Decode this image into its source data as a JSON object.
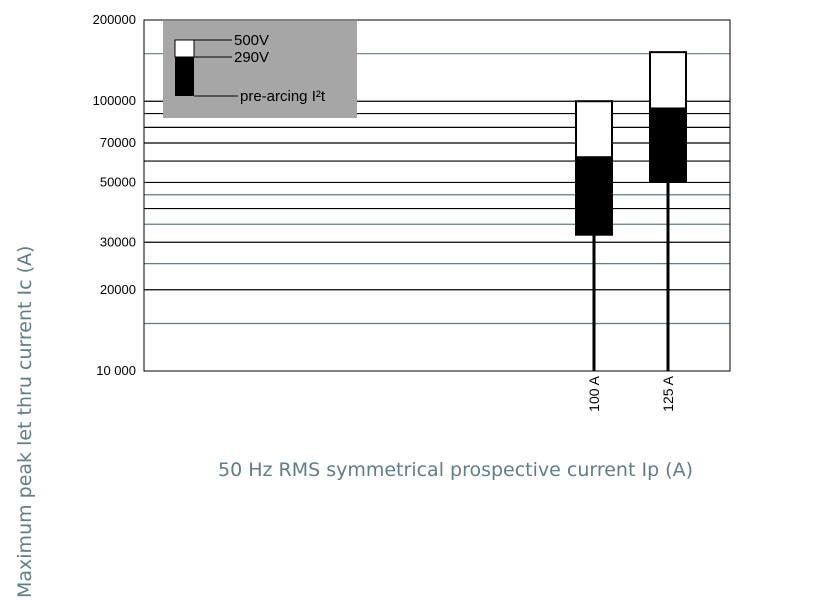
{
  "chart_data": {
    "type": "bar",
    "xlabel": "50 Hz RMS symmetrical prospective current Ip (A)",
    "ylabel": "Maximum peak let thru current Ic (A)",
    "yscale": "log",
    "ylim": [
      10000,
      200000
    ],
    "yticks": [
      {
        "value": 10000,
        "label": "10 000"
      },
      {
        "value": 20000,
        "label": "20000"
      },
      {
        "value": 30000,
        "label": "30000"
      },
      {
        "value": 50000,
        "label": "50000"
      },
      {
        "value": 70000,
        "label": "70000"
      },
      {
        "value": 100000,
        "label": "100000"
      },
      {
        "value": 200000,
        "label": "200000"
      }
    ],
    "gridlines": [
      {
        "value": 15000,
        "color": "#5f7d8a"
      },
      {
        "value": 20000,
        "color": "#000000"
      },
      {
        "value": 25000,
        "color": "#5f7d8a"
      },
      {
        "value": 30000,
        "color": "#000000"
      },
      {
        "value": 35000,
        "color": "#5f7d8a"
      },
      {
        "value": 40000,
        "color": "#000000"
      },
      {
        "value": 45000,
        "color": "#5f7d8a"
      },
      {
        "value": 50000,
        "color": "#000000"
      },
      {
        "value": 60000,
        "color": "#000000"
      },
      {
        "value": 70000,
        "color": "#000000"
      },
      {
        "value": 80000,
        "color": "#000000"
      },
      {
        "value": 90000,
        "color": "#000000"
      },
      {
        "value": 100000,
        "color": "#000000"
      },
      {
        "value": 150000,
        "color": "#5f7d8a"
      }
    ],
    "categories": [
      "100 A",
      "125 A"
    ],
    "series": [
      {
        "name": "pre-arcing I²t",
        "values": [
          32000,
          50500
        ],
        "color": "#000000"
      },
      {
        "name": "290V",
        "values": [
          62000,
          94000
        ],
        "color": "#000000"
      },
      {
        "name": "500V",
        "values": [
          100000,
          152000
        ],
        "color": "#ffffff"
      }
    ],
    "legend": {
      "position": "top-left",
      "background": "#a6a6a6",
      "entries": [
        "500V",
        "290V",
        "pre-arcing I²t"
      ]
    }
  }
}
